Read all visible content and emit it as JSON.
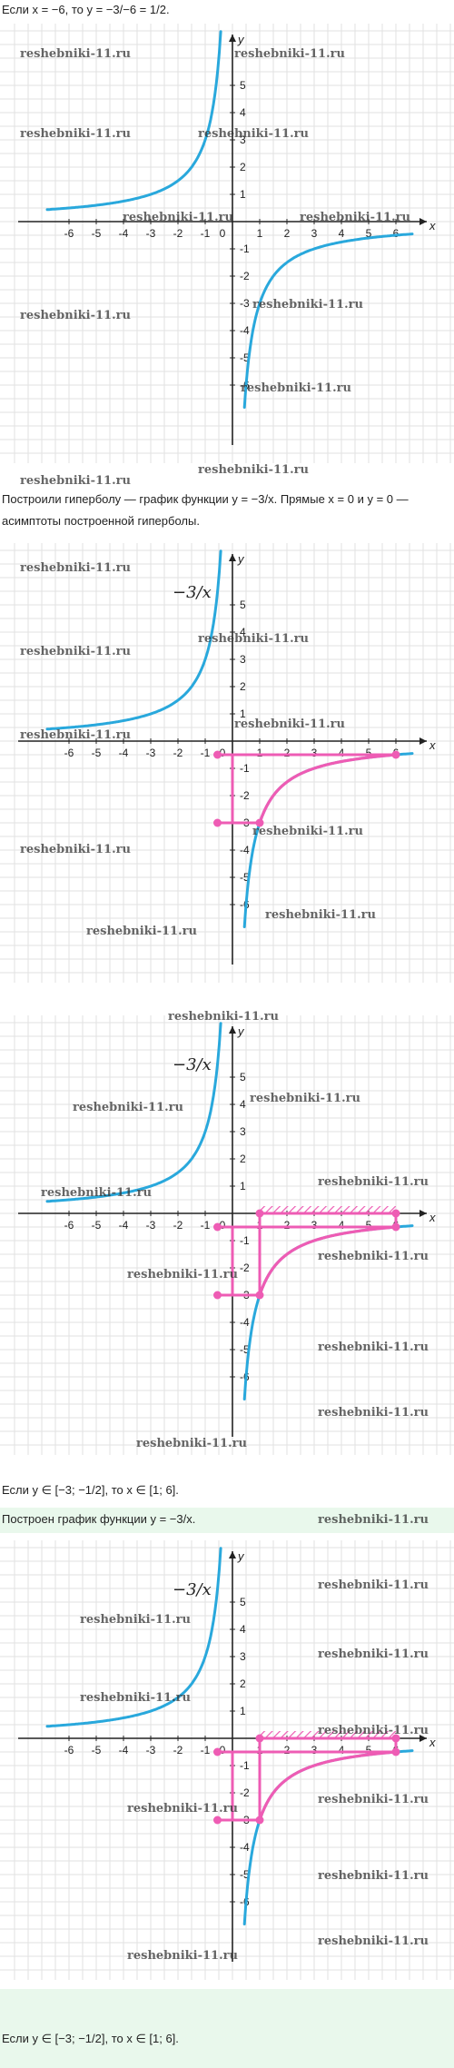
{
  "texts": {
    "line1": "Если x = −6, то y = −3/−6 = 1/2.",
    "line2": "Построили гиперболу — график функции y = −3/x. Прямые x = 0 и y = 0 —",
    "line3": "асимптоты построенной гиперболы.",
    "line4": "Если y ∈ [−3; −1/2], то x ∈ [1; 6].",
    "line5": "Построен график функции y = −3/x.",
    "line6": "Если y ∈ [−3; −1/2], то x ∈ [1; 6]."
  },
  "axis": {
    "x_label": "x",
    "y_label": "y",
    "x_ticks": [
      "-6",
      "-5",
      "-4",
      "-3",
      "-2",
      "-1",
      "0",
      "1",
      "2",
      "3",
      "4",
      "5",
      "6"
    ],
    "y_ticks": [
      "5",
      "4",
      "3",
      "2",
      "1",
      "-1",
      "-2",
      "-3",
      "-4",
      "-5",
      "-6"
    ],
    "x_range": [
      -7,
      7
    ],
    "y_range": [
      -7,
      6.5
    ]
  },
  "function_label": "−3/x",
  "highlight": {
    "y_interval": [
      -3,
      -0.5
    ],
    "x_interval": [
      1,
      6
    ],
    "points": [
      [
        1,
        -3
      ],
      [
        6,
        -0.5
      ]
    ]
  },
  "colors": {
    "curve": "#29a8dc",
    "highlight": "#ee5cb4",
    "grid": "#e2e2e2",
    "axis": "#222222",
    "green_band": "#e9f8ec"
  },
  "watermark": "reshebniki-11.ru"
}
